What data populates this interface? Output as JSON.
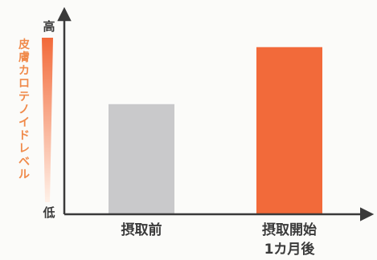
{
  "chart_data": {
    "type": "bar",
    "categories": [
      "摂取前",
      "摂取開始\n1カ月後"
    ],
    "values": [
      0.56,
      0.85
    ],
    "ylim": [
      0,
      1
    ],
    "ylabel": "皮膚カロテノイドレベル",
    "y_high_label": "高",
    "y_low_label": "低",
    "ytick_values": [
      0,
      1
    ],
    "numeric_ticks_shown": false,
    "grid": false,
    "legend": "none",
    "colors": {
      "bars": [
        "#c9c9cb",
        "#f26a3a"
      ],
      "axis": "#3a3a3a",
      "ylabel": "#f08a4a",
      "gradient_top": "#f26a3a",
      "gradient_bottom": "#fff1e8"
    }
  }
}
